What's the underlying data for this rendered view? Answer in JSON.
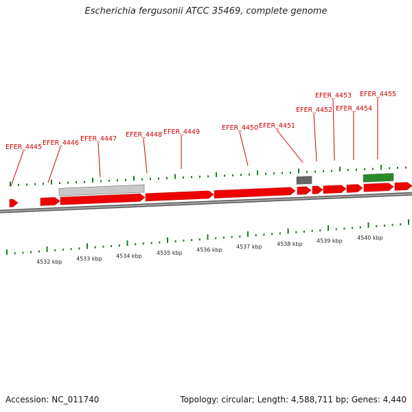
{
  "title": "Escherichia fergusonii ATCC 35469, complete genome",
  "footer": {
    "accession": "Accession: NC_011740",
    "summary": "Topology: circular; Length: 4,588,711 bp; Genes: 4,440"
  },
  "colors": {
    "gene": "#ee0000",
    "gene_dark": "#bb0000",
    "label": "#cc0000",
    "tick": "#1e7a1e",
    "backbone": "#777777",
    "light_feature": "#c8c8c8",
    "dark_feature": "#666666",
    "green_feature": "#2a8a2a"
  },
  "scale": {
    "unit": "kbp",
    "labels": [
      "4532 kbp",
      "4533 kbp",
      "4534 kbp",
      "4535 kbp",
      "4536 kbp",
      "4537 kbp",
      "4538 kbp",
      "4539 kbp",
      "4540 kbp"
    ]
  },
  "genes": [
    {
      "name": "EFER_4445"
    },
    {
      "name": "EFER_4446"
    },
    {
      "name": "EFER_4447"
    },
    {
      "name": "EFER_4448"
    },
    {
      "name": "EFER_4449"
    },
    {
      "name": "EFER_4450"
    },
    {
      "name": "EFER_4451"
    },
    {
      "name": "EFER_4452"
    },
    {
      "name": "EFER_4453"
    },
    {
      "name": "EFER_4454"
    },
    {
      "name": "EFER_4455"
    }
  ]
}
